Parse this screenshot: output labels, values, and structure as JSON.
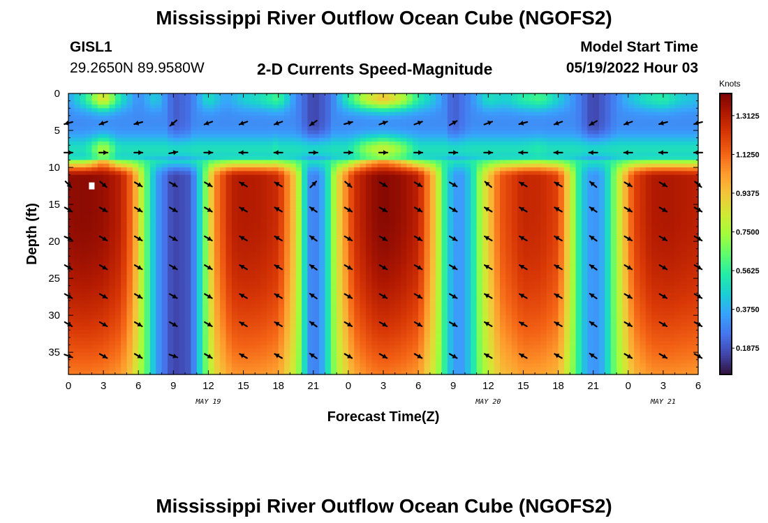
{
  "page": {
    "title": "Mississippi River Outflow Ocean Cube (NGOFS2)",
    "station_id": "GISL1",
    "station_coords": "29.2650N  89.9580W",
    "subtitle": "2-D Currents Speed-Magnitude",
    "model_start_label": "Model Start Time",
    "model_start_value": "05/19/2022 Hour 03",
    "footer_title": "Mississippi River Outflow Ocean Cube (NGOFS2)"
  },
  "chart_data": {
    "type": "heatmap",
    "title": "2-D Currents Speed-Magnitude",
    "xlabel": "Forecast Time(Z)",
    "ylabel": "Depth (ft)",
    "xlim": [
      0,
      54
    ],
    "ylim": [
      38,
      0
    ],
    "x_ticks": [
      0,
      3,
      6,
      9,
      12,
      15,
      18,
      21,
      24,
      27,
      30,
      33,
      36,
      39,
      42,
      45,
      48,
      51,
      54
    ],
    "x_tick_labels": [
      "0",
      "3",
      "6",
      "9",
      "12",
      "15",
      "18",
      "21",
      "0",
      "3",
      "6",
      "9",
      "12",
      "15",
      "18",
      "21",
      "0",
      "3",
      "6"
    ],
    "y_ticks": [
      0,
      5,
      10,
      15,
      20,
      25,
      30,
      35
    ],
    "y_tick_labels": [
      "0",
      "5",
      "10",
      "15",
      "20",
      "25",
      "30",
      "35"
    ],
    "date_labels": [
      {
        "x": 12,
        "label": "MAY 19"
      },
      {
        "x": 36,
        "label": "MAY 20"
      },
      {
        "x": 51,
        "label": "MAY 21"
      }
    ],
    "colorbar": {
      "title": "Knots",
      "min": 0.06,
      "max": 1.42,
      "ticks": [
        1.3125,
        1.125,
        0.9375,
        0.75,
        0.5625,
        0.375,
        0.1875
      ],
      "tick_labels": [
        "1.3125",
        "1.1250",
        "0.9375",
        "0.7500",
        "0.5625",
        "0.3750",
        "0.1875"
      ],
      "colors": [
        "#30123b",
        "#4145ab",
        "#4675ed",
        "#39a2fc",
        "#1bcfd4",
        "#24eca6",
        "#61fc6c",
        "#a4fc3b",
        "#d1e834",
        "#f3c63a",
        "#fe9b2d",
        "#f36315",
        "#d93806",
        "#b11901",
        "#7a0403"
      ]
    },
    "surface_layer": {
      "depth_range_ft": [
        0,
        9
      ],
      "profile": [
        [
          0,
          0.35
        ],
        [
          1.5,
          0.55
        ],
        [
          3,
          0.9
        ],
        [
          4.5,
          0.5
        ],
        [
          6,
          0.3
        ],
        [
          7.5,
          0.45
        ],
        [
          9,
          0.2
        ],
        [
          10.5,
          0.25
        ],
        [
          12,
          0.5
        ],
        [
          13.5,
          0.35
        ],
        [
          15,
          0.45
        ],
        [
          16.5,
          0.5
        ],
        [
          18,
          0.6
        ],
        [
          19.5,
          0.3
        ],
        [
          21,
          0.15
        ],
        [
          22.5,
          0.25
        ],
        [
          24,
          0.55
        ],
        [
          25.5,
          0.8
        ],
        [
          27,
          0.95
        ],
        [
          28.5,
          0.8
        ],
        [
          30,
          0.55
        ],
        [
          31.5,
          0.4
        ],
        [
          33,
          0.2
        ],
        [
          34.5,
          0.3
        ],
        [
          36,
          0.5
        ],
        [
          37.5,
          0.45
        ],
        [
          39,
          0.55
        ],
        [
          40.5,
          0.6
        ],
        [
          42,
          0.45
        ],
        [
          43.5,
          0.3
        ],
        [
          45,
          0.15
        ],
        [
          46.5,
          0.25
        ],
        [
          48,
          0.4
        ],
        [
          49.5,
          0.5
        ],
        [
          51,
          0.55
        ],
        [
          52.5,
          0.45
        ],
        [
          54,
          0.4
        ]
      ]
    },
    "deep_layer": {
      "depth_range_ft": [
        9,
        38
      ],
      "profile": [
        [
          0,
          1.38
        ],
        [
          1.5,
          1.39
        ],
        [
          3,
          1.37
        ],
        [
          4.5,
          1.3
        ],
        [
          5.5,
          1.1
        ],
        [
          6.5,
          0.7
        ],
        [
          7.5,
          0.35
        ],
        [
          9,
          0.15
        ],
        [
          10.5,
          0.2
        ],
        [
          11.5,
          0.55
        ],
        [
          12.5,
          1.05
        ],
        [
          14,
          1.3
        ],
        [
          15,
          1.32
        ],
        [
          16.5,
          1.31
        ],
        [
          18,
          1.26
        ],
        [
          19.5,
          0.9
        ],
        [
          20.5,
          0.35
        ],
        [
          21,
          0.25
        ],
        [
          22,
          0.4
        ],
        [
          23,
          0.85
        ],
        [
          24.5,
          1.25
        ],
        [
          26,
          1.37
        ],
        [
          27,
          1.4
        ],
        [
          28.5,
          1.37
        ],
        [
          30,
          1.3
        ],
        [
          31.5,
          0.9
        ],
        [
          32.5,
          0.45
        ],
        [
          33.5,
          0.3
        ],
        [
          34.5,
          0.45
        ],
        [
          35.5,
          0.8
        ],
        [
          37,
          1.15
        ],
        [
          39,
          1.28
        ],
        [
          40.5,
          1.27
        ],
        [
          42,
          1.2
        ],
        [
          43,
          0.85
        ],
        [
          44,
          0.45
        ],
        [
          45,
          0.3
        ],
        [
          46,
          0.4
        ],
        [
          47,
          0.75
        ],
        [
          48.5,
          1.2
        ],
        [
          50,
          1.32
        ],
        [
          51.5,
          1.33
        ],
        [
          54,
          1.3
        ]
      ]
    },
    "vector_arrows": {
      "x_times": [
        0,
        3,
        6,
        9,
        12,
        15,
        18,
        21,
        24,
        27,
        30,
        33,
        36,
        39,
        42,
        45,
        48,
        51,
        54
      ],
      "depths_ft": [
        4,
        8,
        12.3,
        15.7,
        19.6,
        23.5,
        27.4,
        31.2,
        35.5
      ],
      "direction_deg": [
        [
          195,
          200,
          195,
          220,
          200,
          200,
          200,
          215,
          15,
          20,
          20,
          30,
          20,
          195,
          200,
          210,
          200,
          195,
          195
        ],
        [
          0,
          0,
          0,
          10,
          0,
          180,
          180,
          0,
          0,
          0,
          0,
          0,
          0,
          180,
          180,
          180,
          180,
          180,
          180
        ],
        [
          315,
          320,
          330,
          330,
          330,
          150,
          150,
          45,
          320,
          330,
          330,
          330,
          140,
          150,
          150,
          140,
          330,
          330,
          320
        ],
        [
          330,
          330,
          330,
          330,
          330,
          150,
          150,
          145,
          330,
          330,
          330,
          330,
          150,
          150,
          150,
          145,
          330,
          330,
          330
        ],
        [
          335,
          330,
          330,
          330,
          330,
          150,
          150,
          145,
          330,
          330,
          330,
          330,
          150,
          150,
          150,
          145,
          330,
          330,
          330
        ],
        [
          330,
          330,
          330,
          330,
          330,
          150,
          150,
          145,
          330,
          330,
          330,
          330,
          150,
          150,
          150,
          145,
          330,
          330,
          330
        ],
        [
          330,
          330,
          330,
          330,
          330,
          150,
          150,
          145,
          330,
          330,
          330,
          330,
          150,
          150,
          150,
          145,
          330,
          330,
          330
        ],
        [
          330,
          330,
          330,
          330,
          330,
          150,
          150,
          145,
          330,
          330,
          330,
          330,
          150,
          150,
          150,
          145,
          330,
          330,
          330
        ],
        [
          340,
          330,
          330,
          340,
          330,
          150,
          150,
          145,
          330,
          330,
          330,
          330,
          150,
          150,
          150,
          145,
          330,
          330,
          330
        ]
      ]
    },
    "marker": {
      "x": 2,
      "depth_ft": 12.5,
      "color": "#ffffff"
    }
  }
}
